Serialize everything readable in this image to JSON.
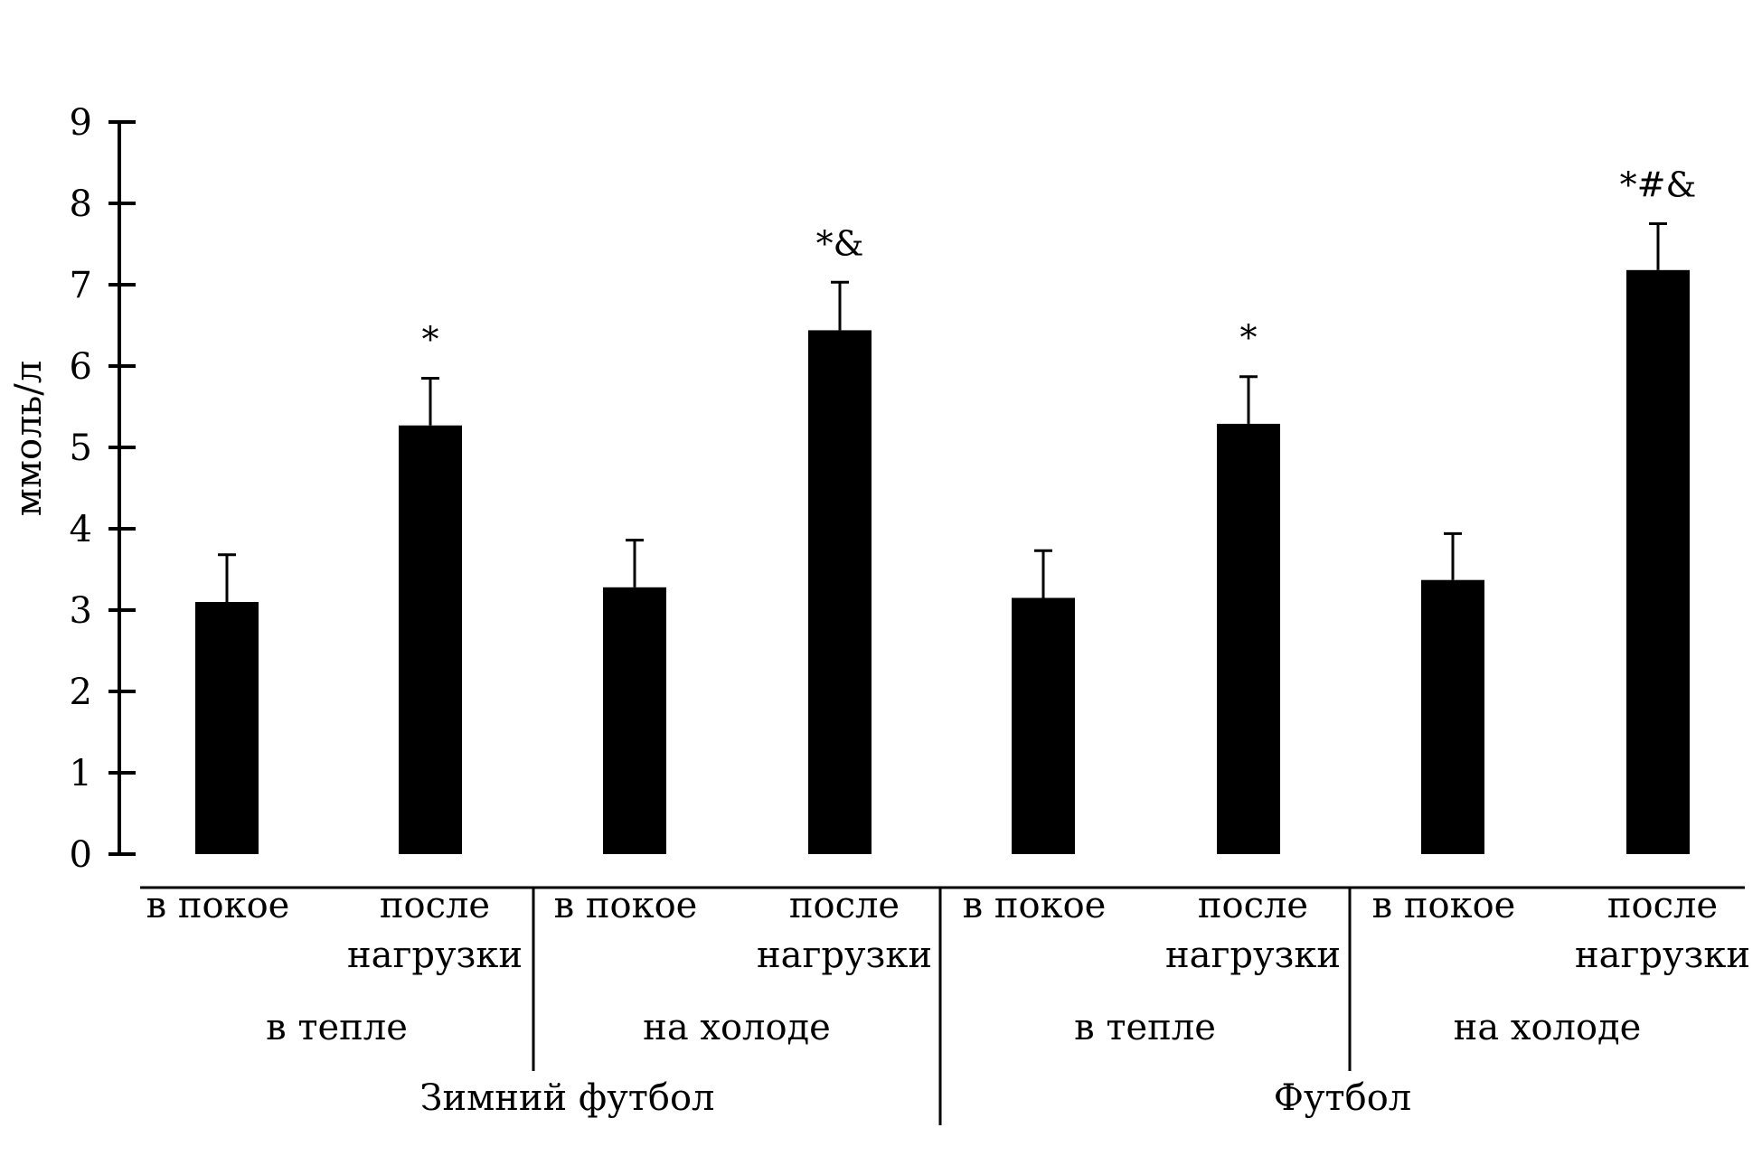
{
  "chart_data": {
    "type": "bar",
    "ylabel": "ммоль/л",
    "ylim": [
      0,
      9
    ],
    "yticks": [
      0,
      1,
      2,
      3,
      4,
      5,
      6,
      7,
      8,
      9
    ],
    "bar_color": "#000000",
    "bars": [
      {
        "label_lines": [
          "в покое"
        ],
        "value": 3.1,
        "error": 0.58,
        "annotation": ""
      },
      {
        "label_lines": [
          "после",
          "нагрузки"
        ],
        "value": 5.27,
        "error": 0.58,
        "annotation": "*"
      },
      {
        "label_lines": [
          "в покое"
        ],
        "value": 3.28,
        "error": 0.58,
        "annotation": ""
      },
      {
        "label_lines": [
          "после",
          "нагрузки"
        ],
        "value": 6.44,
        "error": 0.59,
        "annotation": "*&"
      },
      {
        "label_lines": [
          "в покое"
        ],
        "value": 3.15,
        "error": 0.58,
        "annotation": ""
      },
      {
        "label_lines": [
          "после",
          "нагрузки"
        ],
        "value": 5.29,
        "error": 0.58,
        "annotation": "*"
      },
      {
        "label_lines": [
          "в покое"
        ],
        "value": 3.37,
        "error": 0.57,
        "annotation": ""
      },
      {
        "label_lines": [
          "после",
          "нагрузки"
        ],
        "value": 7.18,
        "error": 0.57,
        "annotation": "*#&"
      }
    ],
    "conditions": [
      "в тепле",
      "на холоде",
      "в тепле",
      "на холоде"
    ],
    "sports": [
      "Зимний футбол",
      "Футбол"
    ]
  }
}
